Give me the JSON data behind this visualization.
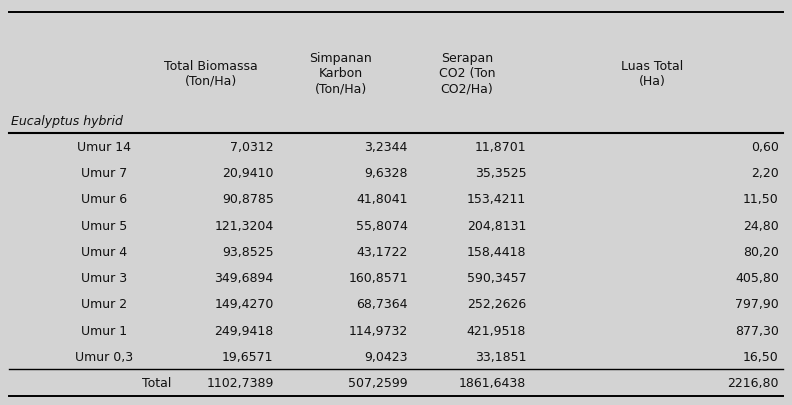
{
  "header_col0": "Eucalyptus hybrid",
  "header_col1": "Total Biomassa\n(Ton/Ha)",
  "header_col2": "Simpanan\nKarbon\n(Ton/Ha)",
  "header_col3": "Serapan\nCO2 (Ton\nCO2/Ha)",
  "header_col4": "Luas Total\n(Ha)",
  "rows": [
    [
      "Umur 14",
      "7,0312",
      "3,2344",
      "11,8701",
      "0,60"
    ],
    [
      "Umur 7",
      "20,9410",
      "9,6328",
      "35,3525",
      "2,20"
    ],
    [
      "Umur 6",
      "90,8785",
      "41,8041",
      "153,4211",
      "11,50"
    ],
    [
      "Umur 5",
      "121,3204",
      "55,8074",
      "204,8131",
      "24,80"
    ],
    [
      "Umur 4",
      "93,8525",
      "43,1722",
      "158,4418",
      "80,20"
    ],
    [
      "Umur 3",
      "349,6894",
      "160,8571",
      "590,3457",
      "405,80"
    ],
    [
      "Umur 2",
      "149,4270",
      "68,7364",
      "252,2626",
      "797,90"
    ],
    [
      "Umur 1",
      "249,9418",
      "114,9732",
      "421,9518",
      "877,30"
    ],
    [
      "Umur 0,3",
      "19,6571",
      "9,0423",
      "33,1851",
      "16,50"
    ]
  ],
  "total_row": [
    "Total",
    "1102,7389",
    "507,2599",
    "1861,6438",
    "2216,80"
  ],
  "bg_color": "#d3d3d3",
  "text_color": "#111111",
  "font_size": 9.0,
  "header_font_size": 9.0
}
